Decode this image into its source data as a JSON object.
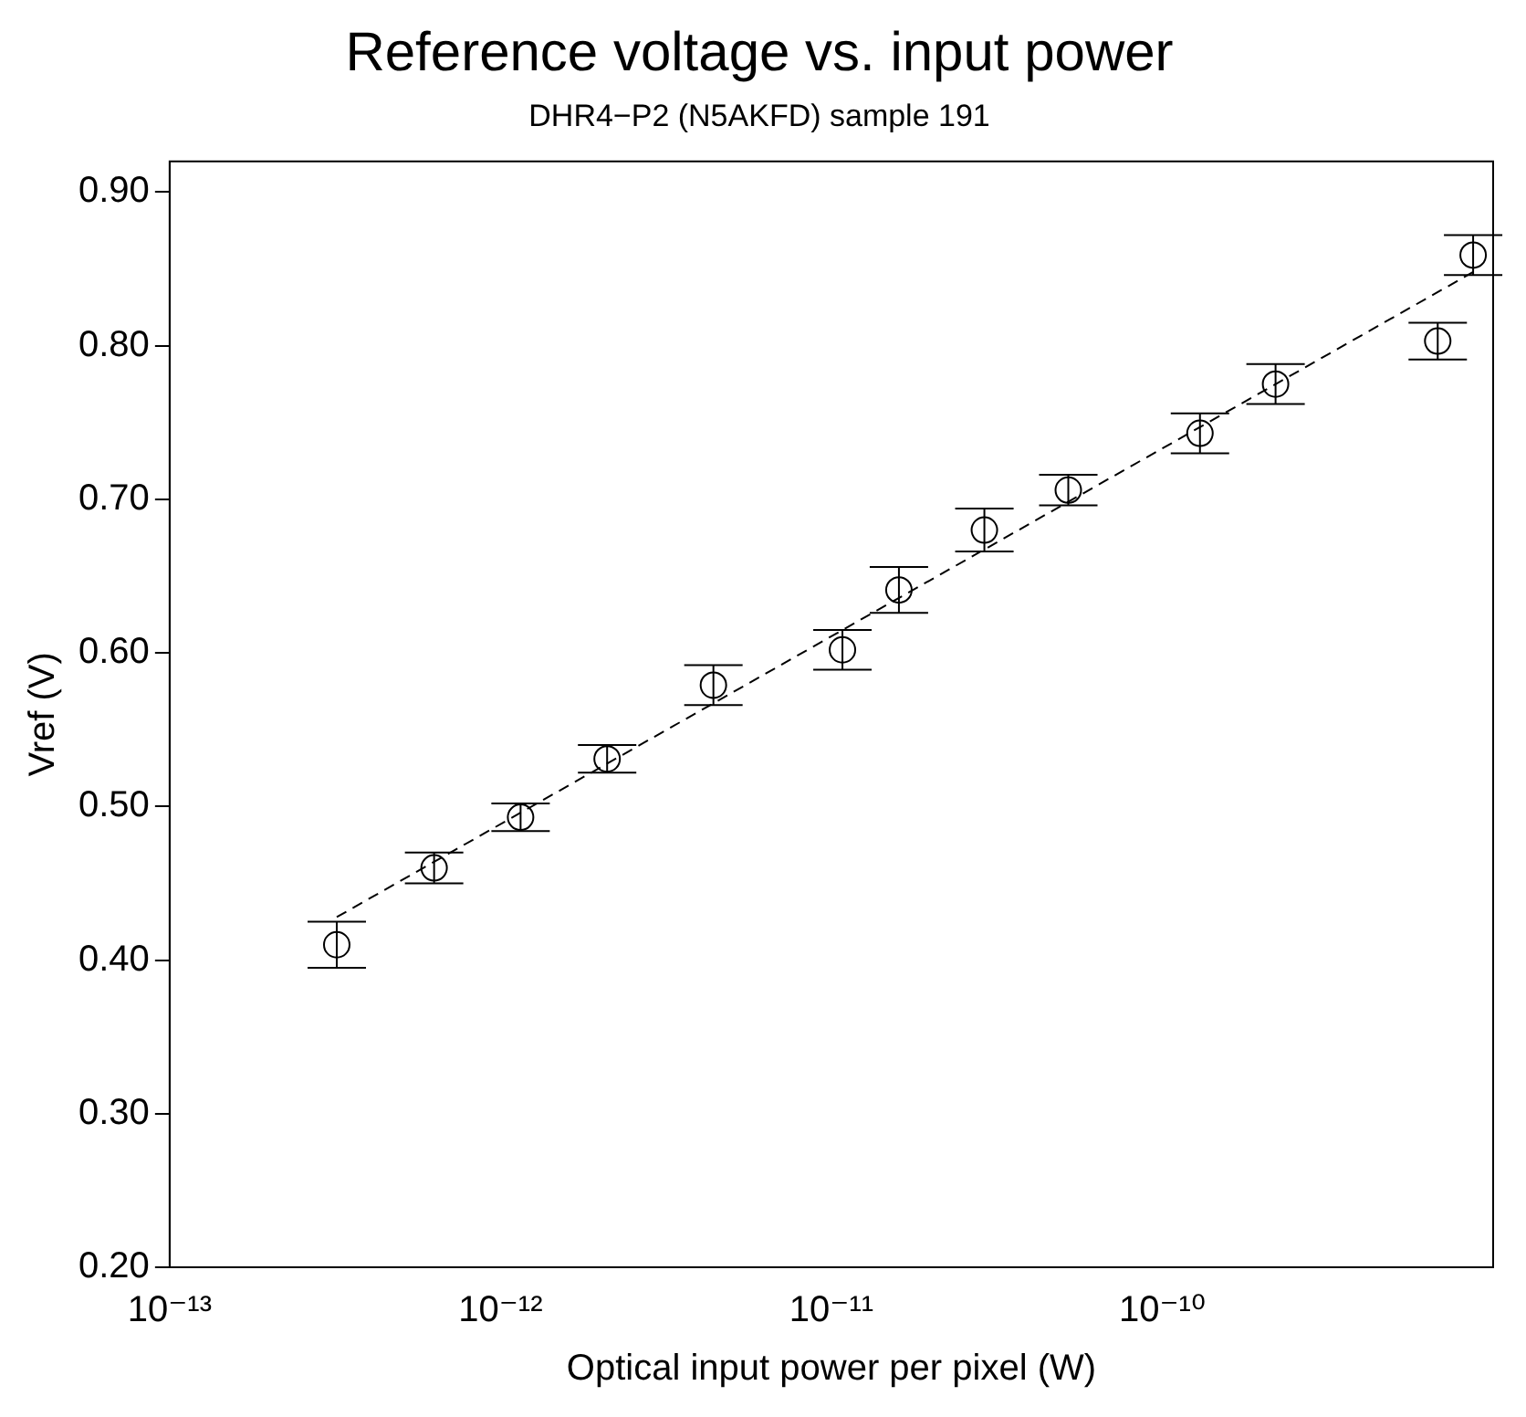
{
  "chart_data": {
    "type": "scatter",
    "title": "Reference voltage vs. input power",
    "subtitle": "DHR4−P2 (N5AKFD) sample 191",
    "xlabel": "Optical input power per pixel (W)",
    "ylabel": "Vref (V)",
    "log": "x",
    "xlim": [
      1e-13,
      1e-09
    ],
    "xticks": [
      {
        "value": 1e-13,
        "label": "10⁻¹³"
      },
      {
        "value": 1e-12,
        "label": "10⁻¹²"
      },
      {
        "value": 1e-11,
        "label": "10⁻¹¹"
      },
      {
        "value": 1e-10,
        "label": "10⁻¹⁰"
      },
      {
        "value": 1e-09,
        "label": null
      }
    ],
    "ylim": [
      0.2,
      0.92
    ],
    "yticks": [
      {
        "value": 0.2,
        "label": "0.20"
      },
      {
        "value": 0.3,
        "label": "0.30"
      },
      {
        "value": 0.4,
        "label": "0.40"
      },
      {
        "value": 0.5,
        "label": "0.50"
      },
      {
        "value": 0.6,
        "label": "0.60"
      },
      {
        "value": 0.7,
        "label": "0.70"
      },
      {
        "value": 0.8,
        "label": "0.80"
      },
      {
        "value": 0.9,
        "label": "0.90"
      }
    ],
    "grid": false,
    "legend": false,
    "series": [
      {
        "type": "scatter",
        "color": "#000000",
        "marker": "circle",
        "x": [
          3.2e-13,
          6.3e-13,
          1.15e-12,
          2.1e-12,
          4.4e-12,
          1.08e-11,
          1.6e-11,
          2.9e-11,
          5.2e-11,
          1.3e-10,
          2.2e-10,
          6.8e-10,
          8.7e-10
        ],
        "values": [
          0.41,
          0.46,
          0.493,
          0.531,
          0.579,
          0.602,
          0.641,
          0.68,
          0.706,
          0.743,
          0.775,
          0.803,
          0.859
        ],
        "errors": [
          0.015,
          0.01,
          0.009,
          0.009,
          0.013,
          0.013,
          0.015,
          0.014,
          0.01,
          0.013,
          0.013,
          0.012,
          0.013
        ]
      },
      {
        "type": "line",
        "color": "#000000",
        "marker": "none",
        "line_style": "dashed",
        "x": [
          3.2e-13,
          8.7e-10
        ],
        "values": [
          0.428,
          0.848
        ]
      }
    ]
  }
}
